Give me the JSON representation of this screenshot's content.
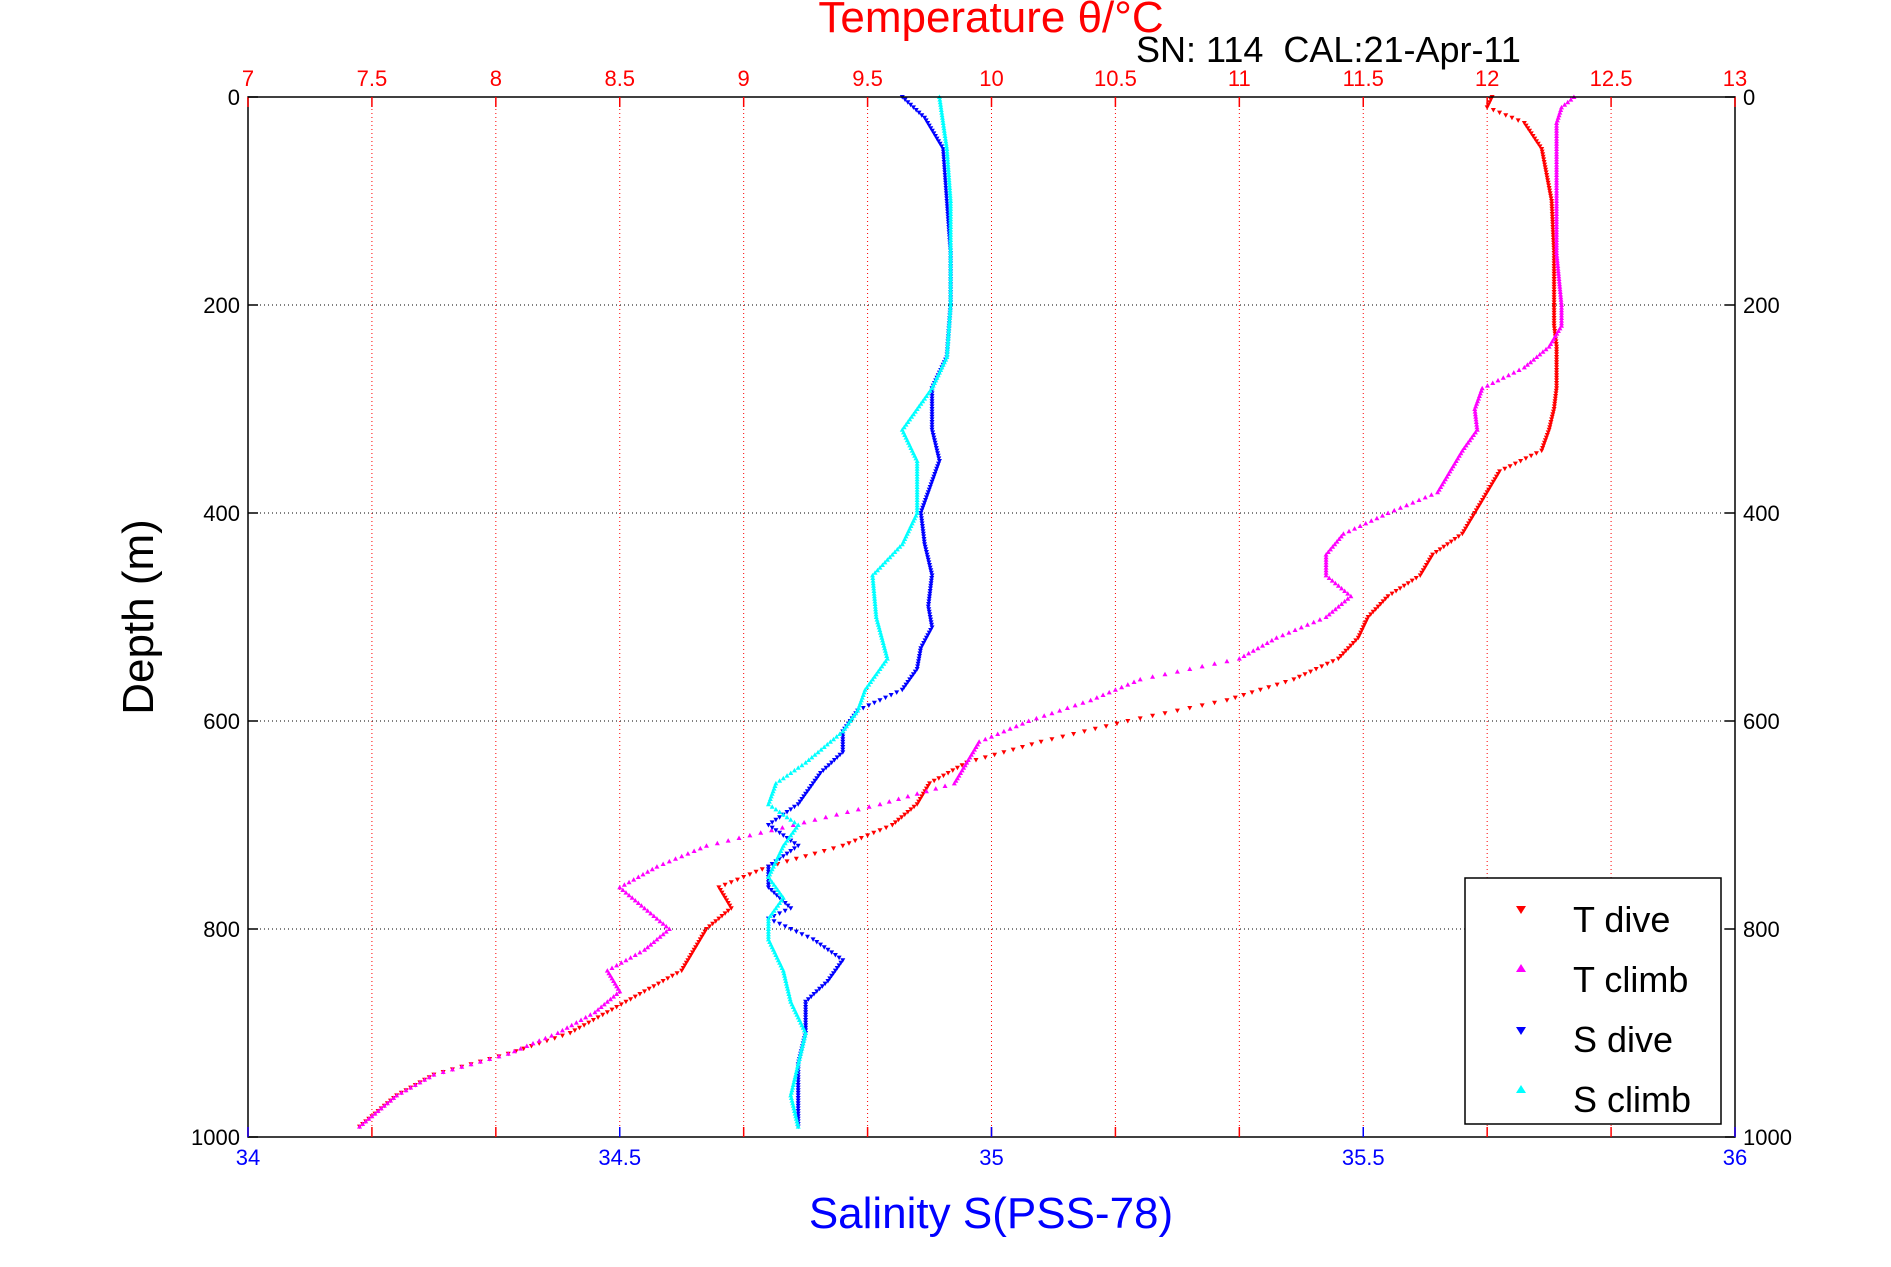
{
  "chart_data": {
    "type": "scatter",
    "title_top": "Temperature θ/°C",
    "annotation": "SN: 114  CAL:21-Apr-11",
    "ylabel": "Depth (m)",
    "xlabel_bottom": "Salinity S(PSS-78)",
    "y_axis": {
      "range": [
        0,
        1000
      ],
      "inverted": true,
      "ticks": [
        0,
        200,
        400,
        600,
        800,
        1000
      ],
      "tick_labels": [
        "0",
        "200",
        "400",
        "600",
        "800",
        "1000"
      ]
    },
    "x_bottom": {
      "range": [
        34,
        36
      ],
      "ticks": [
        34,
        34.5,
        35,
        35.5,
        36
      ],
      "tick_labels": [
        "34",
        "34.5",
        "35",
        "35.5",
        "36"
      ]
    },
    "x_top": {
      "range": [
        7,
        13
      ],
      "ticks": [
        7,
        7.5,
        8,
        8.5,
        9,
        9.5,
        10,
        10.5,
        11,
        11.5,
        12,
        12.5,
        13
      ],
      "tick_labels": [
        "7",
        "7.5",
        "8",
        "8.5",
        "9",
        "9.5",
        "10",
        "10.5",
        "11",
        "11.5",
        "12",
        "12.5",
        "13"
      ]
    },
    "grid": true,
    "legend_placement": "bottom-right",
    "colors": {
      "t_dive": "#ff0000",
      "t_climb": "#ff00ff",
      "s_dive": "#0000ff",
      "s_climb": "#00ffff",
      "top_axis": "#ff0000",
      "bottom_axis": "#0000ff"
    },
    "series": [
      {
        "name": "T dive",
        "axis": "temperature",
        "color": "#ff0000",
        "marker": "triangle-down",
        "x": [
          12.02,
          12.0,
          12.15,
          12.22,
          12.26,
          12.27,
          12.27,
          12.27,
          12.28,
          12.28,
          12.28,
          12.27,
          12.25,
          12.22,
          12.05,
          12.0,
          11.95,
          11.9,
          11.78,
          11.73,
          11.6,
          11.52,
          11.48,
          11.4,
          11.22,
          10.95,
          10.55,
          10.2,
          9.9,
          9.75,
          9.7,
          9.6,
          9.4,
          9.1,
          8.9,
          8.95,
          8.85,
          8.8,
          8.75,
          8.6,
          8.45,
          8.3,
          8.05,
          7.75,
          7.6,
          7.45
        ],
        "y": [
          0,
          10,
          25,
          50,
          100,
          150,
          200,
          220,
          240,
          260,
          280,
          300,
          320,
          340,
          360,
          380,
          400,
          420,
          440,
          460,
          480,
          500,
          520,
          540,
          560,
          580,
          600,
          620,
          640,
          660,
          680,
          700,
          720,
          740,
          760,
          780,
          800,
          820,
          840,
          860,
          880,
          900,
          920,
          940,
          960,
          990
        ]
      },
      {
        "name": "T climb",
        "axis": "temperature",
        "color": "#ff00ff",
        "marker": "triangle-up",
        "x": [
          12.35,
          12.3,
          12.28,
          12.28,
          12.28,
          12.28,
          12.3,
          12.3,
          12.25,
          12.15,
          11.98,
          11.95,
          11.96,
          11.9,
          11.85,
          11.8,
          11.6,
          11.42,
          11.35,
          11.35,
          11.45,
          11.35,
          11.15,
          11.0,
          10.6,
          10.4,
          10.15,
          9.95,
          9.9,
          9.85,
          9.55,
          9.2,
          8.85,
          8.65,
          8.5,
          8.6,
          8.7,
          8.6,
          8.45,
          8.5,
          8.4,
          8.25,
          8.05,
          7.75,
          7.6,
          7.45
        ],
        "y": [
          0,
          10,
          25,
          50,
          100,
          150,
          200,
          220,
          240,
          260,
          280,
          300,
          320,
          340,
          360,
          380,
          400,
          420,
          440,
          460,
          480,
          500,
          520,
          540,
          560,
          580,
          600,
          620,
          640,
          660,
          680,
          700,
          720,
          740,
          760,
          780,
          800,
          820,
          840,
          860,
          880,
          900,
          920,
          940,
          960,
          990
        ]
      },
      {
        "name": "S dive",
        "axis": "salinity",
        "color": "#0000ff",
        "marker": "triangle-down",
        "x": [
          34.88,
          34.91,
          34.935,
          34.94,
          34.945,
          34.945,
          34.94,
          34.92,
          34.92,
          34.93,
          34.905,
          34.91,
          34.92,
          34.915,
          34.92,
          34.905,
          34.9,
          34.88,
          34.82,
          34.8,
          34.8,
          34.77,
          34.74,
          34.7,
          34.74,
          34.7,
          34.7,
          34.73,
          34.7,
          34.76,
          34.8,
          34.78,
          34.75,
          34.75,
          34.74,
          34.74,
          34.74
        ],
        "y": [
          0,
          20,
          50,
          100,
          150,
          200,
          250,
          280,
          320,
          350,
          400,
          430,
          460,
          490,
          510,
          530,
          550,
          570,
          590,
          610,
          630,
          650,
          680,
          700,
          720,
          740,
          760,
          780,
          790,
          810,
          830,
          850,
          870,
          900,
          930,
          960,
          990
        ]
      },
      {
        "name": "S climb",
        "axis": "salinity",
        "color": "#00ffff",
        "marker": "triangle-up",
        "x": [
          34.93,
          34.94,
          34.945,
          34.945,
          34.945,
          34.94,
          34.92,
          34.88,
          34.9,
          34.9,
          34.88,
          34.84,
          34.845,
          34.86,
          34.83,
          34.82,
          34.8,
          34.75,
          34.71,
          34.7,
          34.74,
          34.72,
          34.7,
          34.72,
          34.7,
          34.7,
          34.72,
          34.73,
          34.75,
          34.74,
          34.73,
          34.74
        ],
        "y": [
          0,
          50,
          100,
          150,
          200,
          250,
          280,
          320,
          350,
          400,
          430,
          460,
          500,
          540,
          570,
          590,
          610,
          640,
          660,
          680,
          700,
          720,
          750,
          770,
          790,
          810,
          840,
          870,
          900,
          930,
          960,
          990
        ]
      }
    ]
  }
}
